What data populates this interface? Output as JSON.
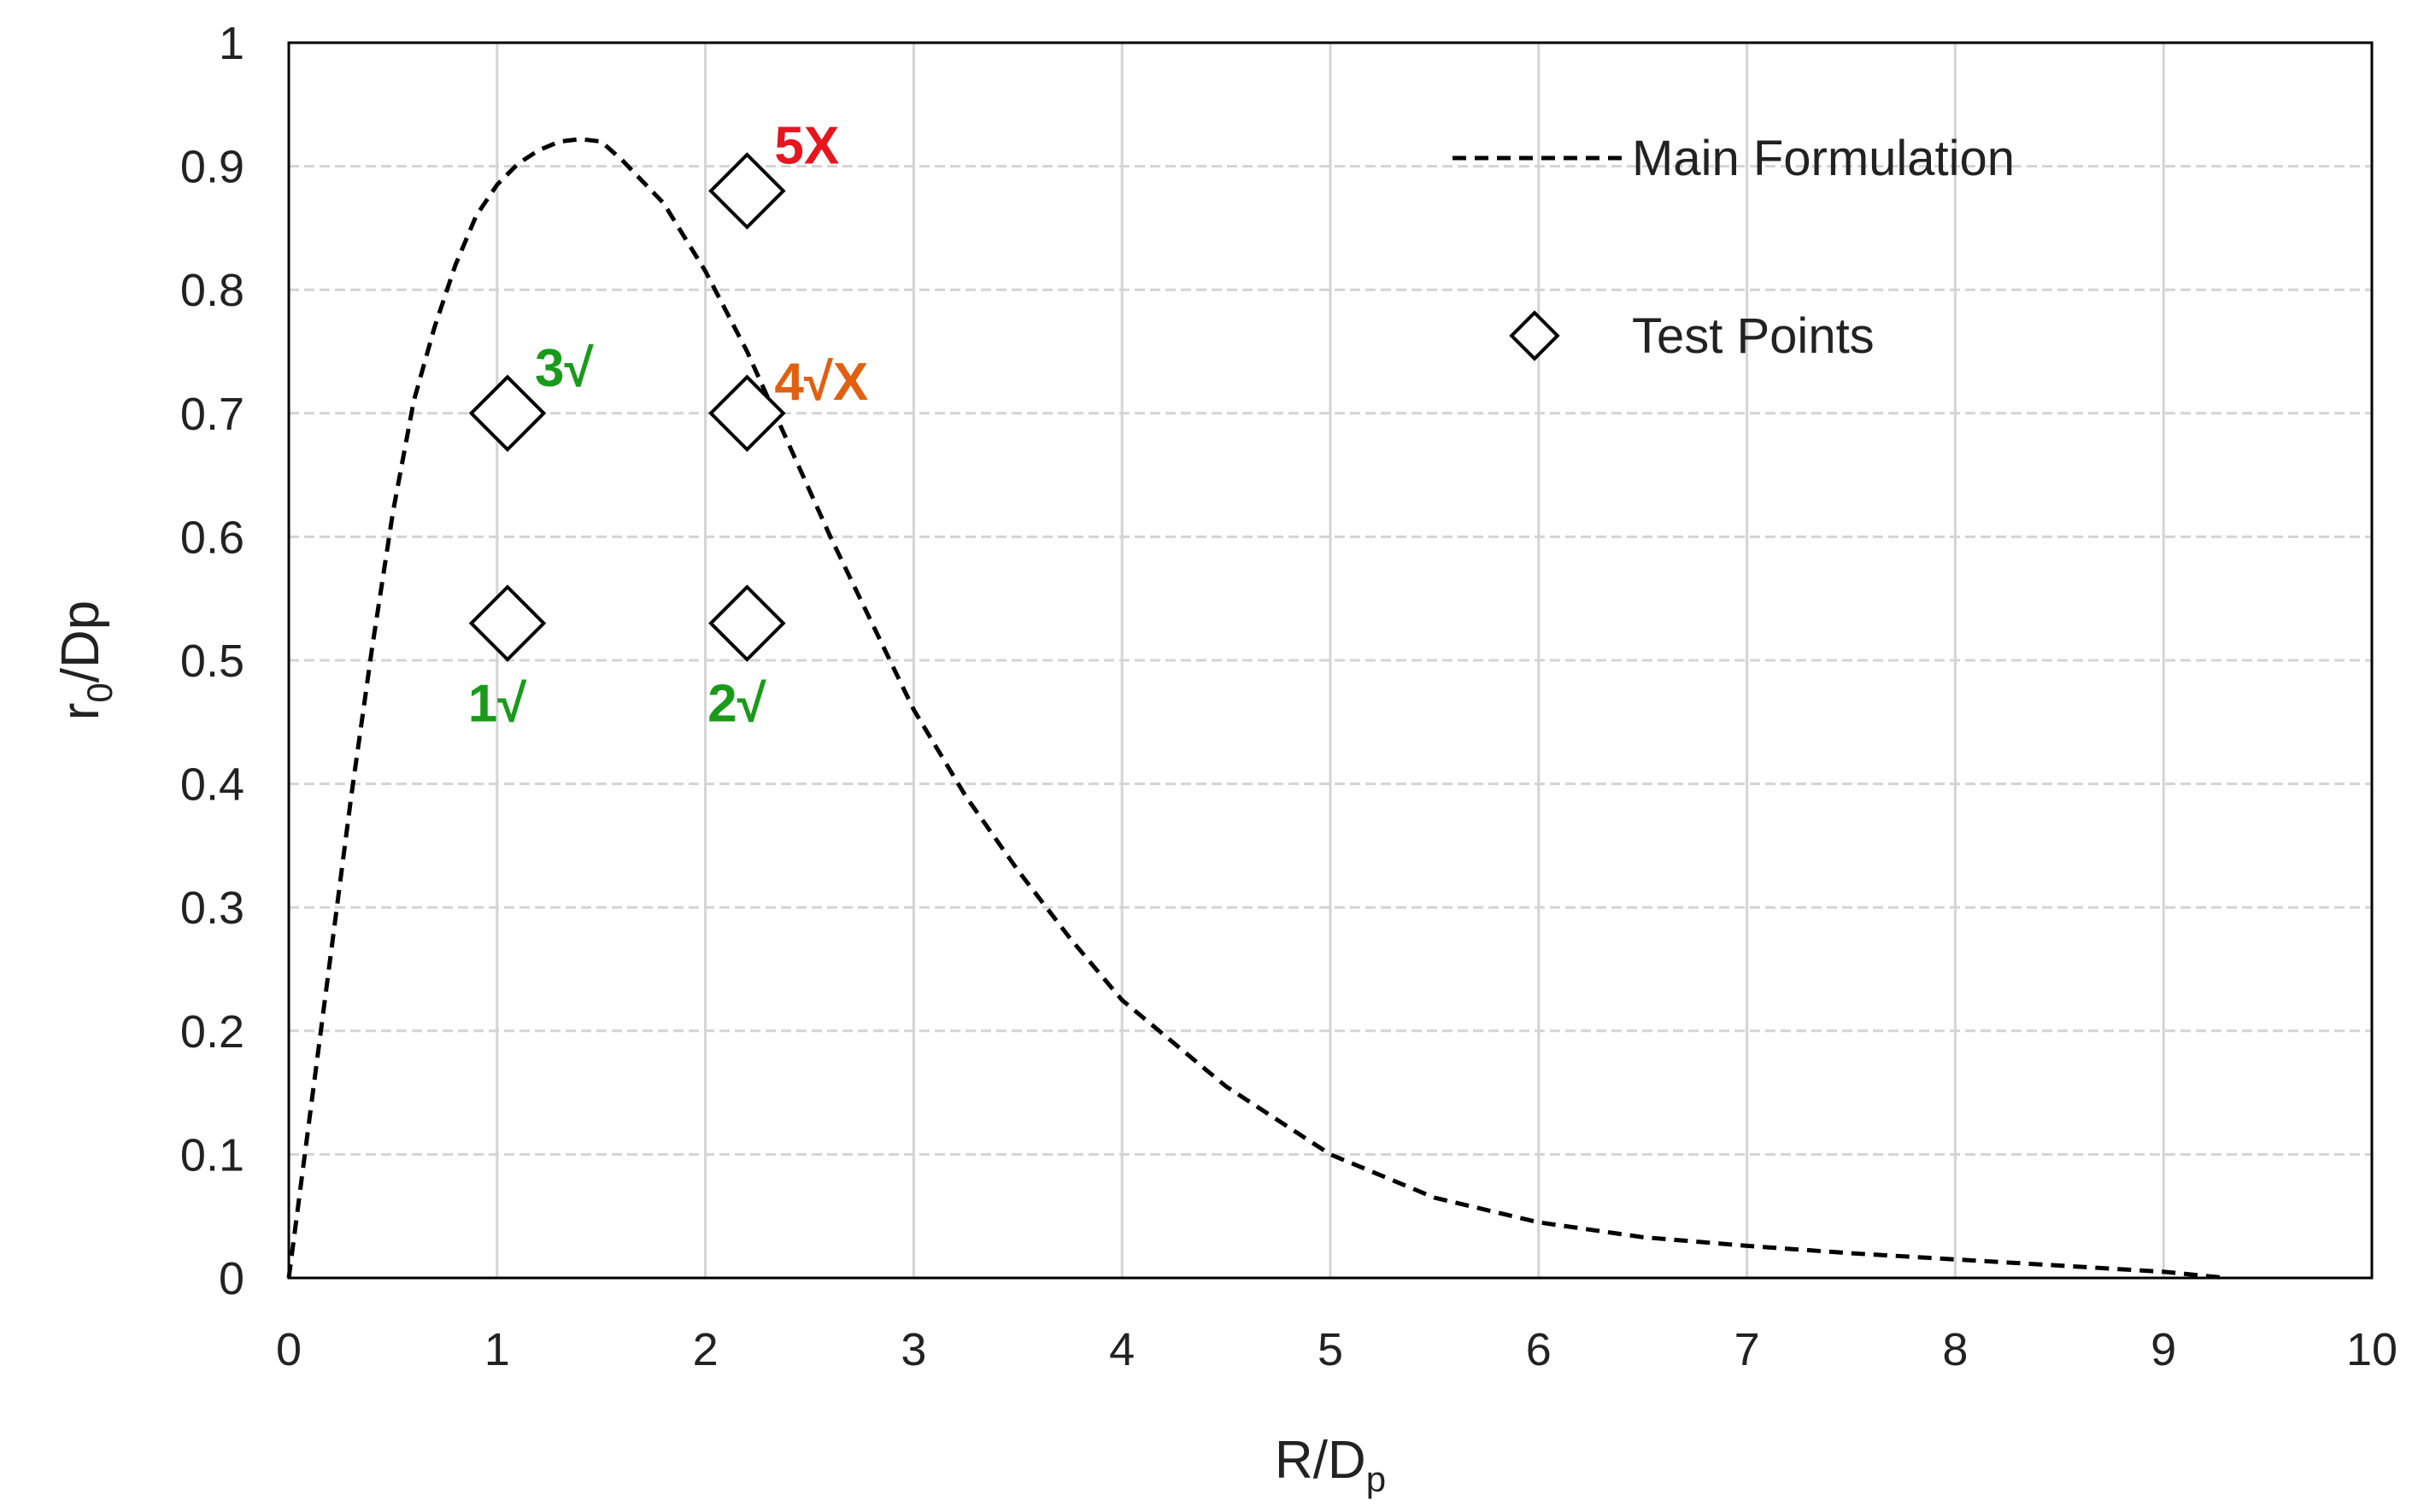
{
  "chart_data": {
    "type": "scatter",
    "title": "",
    "xlabel": "R/D",
    "xlabel_sub": "p",
    "ylabel": "r",
    "ylabel_sub": "0",
    "ylabel_rest": "/Dp",
    "xlim": [
      0,
      10
    ],
    "ylim": [
      0,
      1
    ],
    "x_ticks": [
      0,
      1,
      2,
      3,
      4,
      5,
      6,
      7,
      8,
      9,
      10
    ],
    "y_ticks": [
      0,
      0.1,
      0.2,
      0.3,
      0.4,
      0.5,
      0.6,
      0.7,
      0.8,
      0.9,
      1
    ],
    "x_tick_labels": [
      "0",
      "1",
      "2",
      "3",
      "4",
      "5",
      "6",
      "7",
      "8",
      "9",
      "10"
    ],
    "y_tick_labels": [
      "0",
      "0.1",
      "0.2",
      "0.3",
      "0.4",
      "0.5",
      "0.6",
      "0.7",
      "0.8",
      "0.9",
      "1"
    ],
    "grid": true,
    "legend_position": "top-right",
    "series": [
      {
        "name": "Main Formulation",
        "kind": "line",
        "style": "dashed",
        "color": "#000000",
        "x": [
          0,
          0.1,
          0.2,
          0.3,
          0.4,
          0.5,
          0.6,
          0.7,
          0.8,
          0.9,
          1.0,
          1.1,
          1.2,
          1.3,
          1.4,
          1.5,
          1.6,
          1.8,
          2.0,
          2.2,
          2.4,
          2.6,
          2.8,
          3.0,
          3.25,
          3.5,
          3.75,
          4.0,
          4.5,
          5.0,
          5.5,
          6.0,
          6.5,
          7.0,
          7.5,
          8.0,
          8.5,
          9.0,
          9.3
        ],
        "y": [
          0,
          0.13,
          0.26,
          0.39,
          0.51,
          0.62,
          0.71,
          0.77,
          0.82,
          0.86,
          0.885,
          0.902,
          0.913,
          0.92,
          0.922,
          0.92,
          0.905,
          0.87,
          0.815,
          0.75,
          0.675,
          0.6,
          0.53,
          0.46,
          0.39,
          0.33,
          0.275,
          0.225,
          0.155,
          0.1,
          0.065,
          0.045,
          0.033,
          0.026,
          0.02,
          0.015,
          0.01,
          0.005,
          0.0
        ]
      },
      {
        "name": "Test Points",
        "kind": "scatter",
        "marker": "diamond",
        "color": "#000000",
        "points": [
          {
            "x": 1.05,
            "y": 0.53,
            "label": "1√",
            "label_color": "#1a9a1a",
            "label_pos": "below"
          },
          {
            "x": 2.2,
            "y": 0.53,
            "label": "2√",
            "label_color": "#1a9a1a",
            "label_pos": "below"
          },
          {
            "x": 1.05,
            "y": 0.7,
            "label": "3√",
            "label_color": "#1a9a1a",
            "label_pos": "above-right"
          },
          {
            "x": 2.2,
            "y": 0.7,
            "label": "4√X",
            "label_color": "#e06010",
            "label_pos": "right"
          },
          {
            "x": 2.2,
            "y": 0.88,
            "label": "5X",
            "label_color": "#e8141e",
            "label_pos": "above-right"
          }
        ]
      }
    ]
  }
}
